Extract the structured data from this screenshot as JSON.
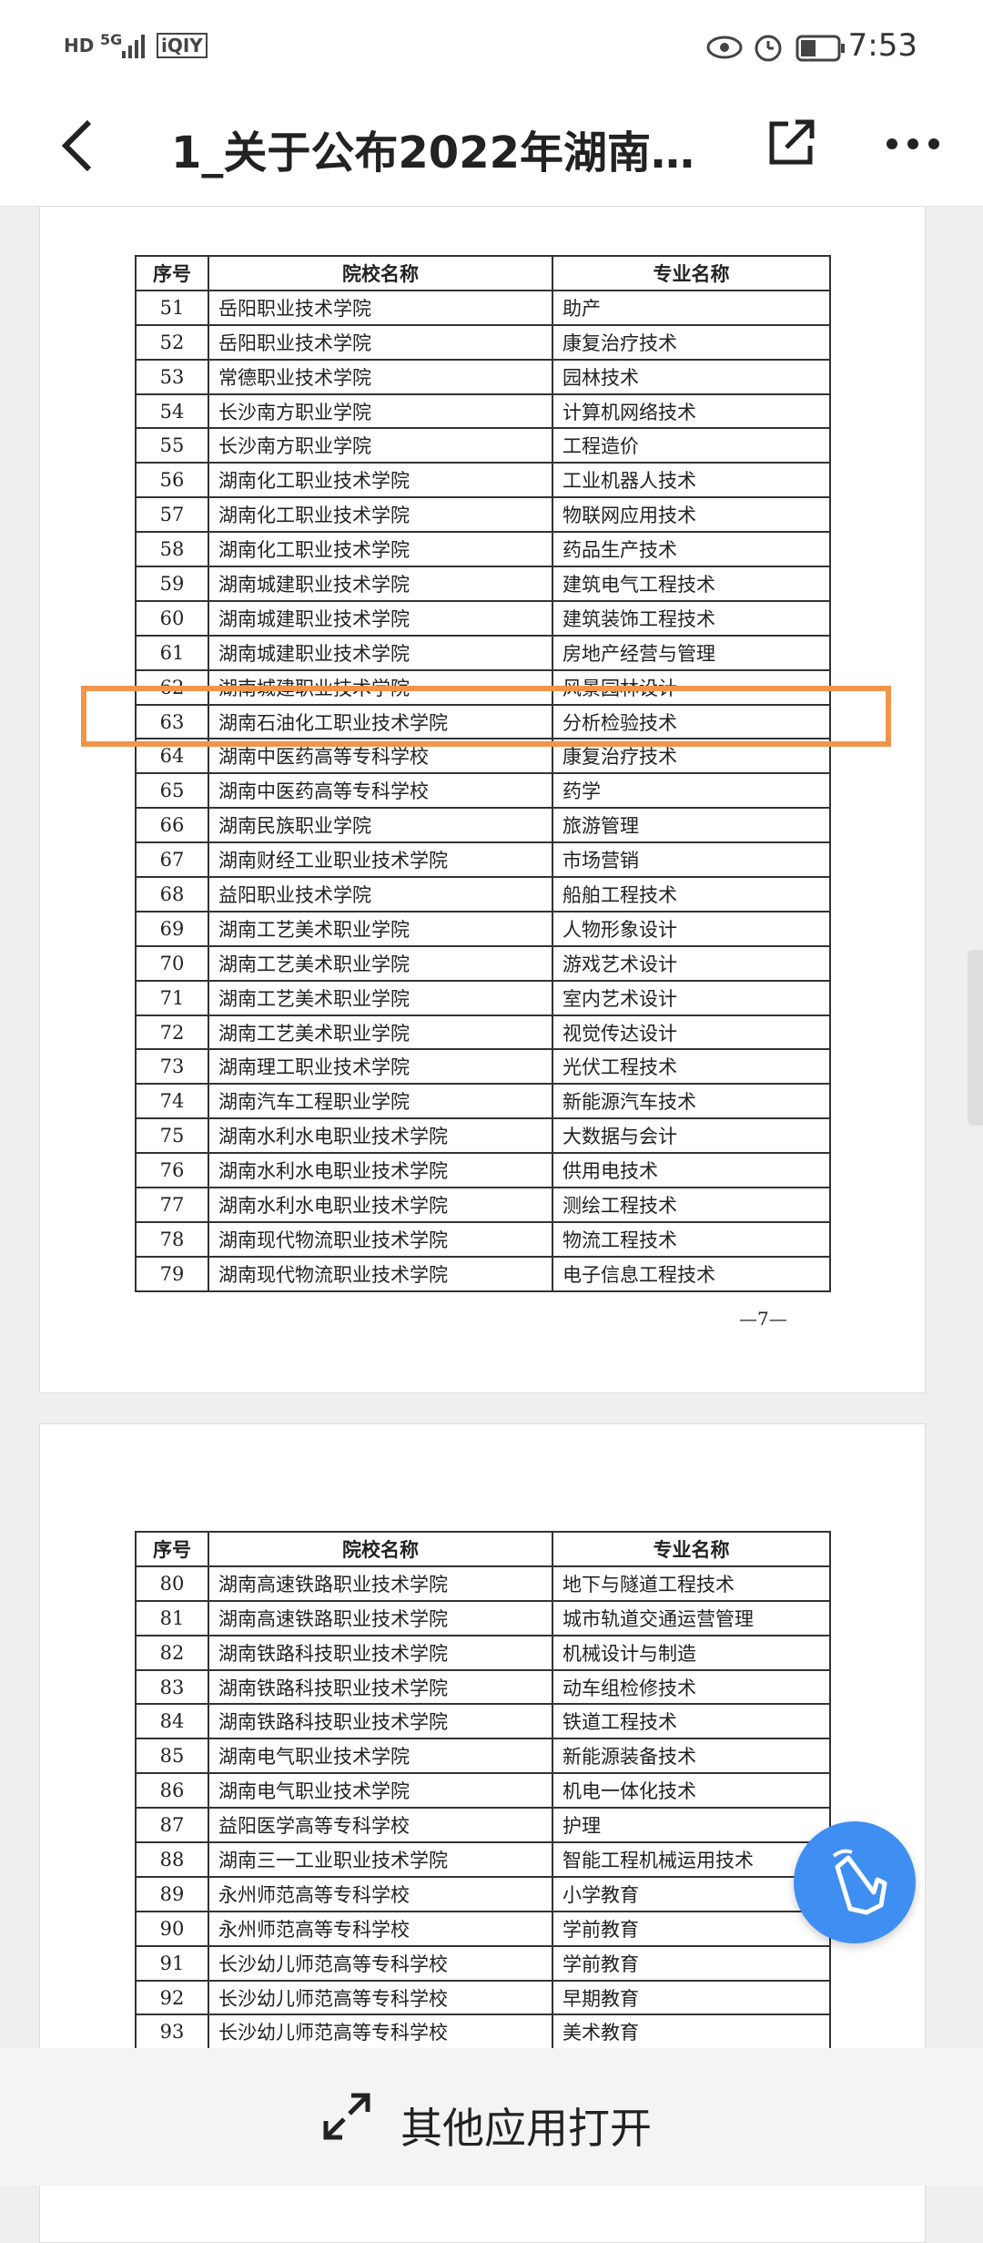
{
  "status_bar": {
    "left_icons": [
      "HD",
      "5G",
      "iQIY"
    ],
    "time": "7:53"
  },
  "header": {
    "title": "1_关于公布2022年湖南…"
  },
  "pages": [
    {
      "table": {
        "header": [
          "序号",
          "院校名称",
          "专业名称"
        ],
        "rows": [
          [
            "51",
            "岳阳职业技术学院",
            "助产"
          ],
          [
            "52",
            "岳阳职业技术学院",
            "康复治疗技术"
          ],
          [
            "53",
            "常德职业技术学院",
            "园林技术"
          ],
          [
            "54",
            "长沙南方职业学院",
            "计算机网络技术"
          ],
          [
            "55",
            "长沙南方职业学院",
            "工程造价"
          ],
          [
            "56",
            "湖南化工职业技术学院",
            "工业机器人技术"
          ],
          [
            "57",
            "湖南化工职业技术学院",
            "物联网应用技术"
          ],
          [
            "58",
            "湖南化工职业技术学院",
            "药品生产技术"
          ],
          [
            "59",
            "湖南城建职业技术学院",
            "建筑电气工程技术"
          ],
          [
            "60",
            "湖南城建职业技术学院",
            "建筑装饰工程技术"
          ],
          [
            "61",
            "湖南城建职业技术学院",
            "房地产经营与管理"
          ],
          [
            "62",
            "湖南城建职业技术学院",
            "风景园林设计"
          ],
          [
            "63",
            "湖南石油化工职业技术学院",
            "分析检验技术"
          ],
          [
            "64",
            "湖南中医药高等专科学校",
            "康复治疗技术"
          ],
          [
            "65",
            "湖南中医药高等专科学校",
            "药学"
          ],
          [
            "66",
            "湖南民族职业学院",
            "旅游管理"
          ],
          [
            "67",
            "湖南财经工业职业技术学院",
            "市场营销"
          ],
          [
            "68",
            "益阳职业技术学院",
            "船舶工程技术"
          ],
          [
            "69",
            "湖南工艺美术职业学院",
            "人物形象设计"
          ],
          [
            "70",
            "湖南工艺美术职业学院",
            "游戏艺术设计"
          ],
          [
            "71",
            "湖南工艺美术职业学院",
            "室内艺术设计"
          ],
          [
            "72",
            "湖南工艺美术职业学院",
            "视觉传达设计"
          ],
          [
            "73",
            "湖南理工职业技术学院",
            "光伏工程技术"
          ],
          [
            "74",
            "湖南汽车工程职业学院",
            "新能源汽车技术"
          ],
          [
            "75",
            "湖南水利水电职业技术学院",
            "大数据与会计"
          ],
          [
            "76",
            "湖南水利水电职业技术学院",
            "供用电技术"
          ],
          [
            "77",
            "湖南水利水电职业技术学院",
            "测绘工程技术"
          ],
          [
            "78",
            "湖南现代物流职业技术学院",
            "物流工程技术"
          ],
          [
            "79",
            "湖南现代物流职业技术学院",
            "电子信息工程技术"
          ]
        ]
      },
      "page_number": "—7—"
    },
    {
      "table": {
        "header": [
          "序号",
          "院校名称",
          "专业名称"
        ],
        "rows": [
          [
            "80",
            "湖南高速铁路职业技术学院",
            "地下与隧道工程技术"
          ],
          [
            "81",
            "湖南高速铁路职业技术学院",
            "城市轨道交通运营管理"
          ],
          [
            "82",
            "湖南铁路科技职业技术学院",
            "机械设计与制造"
          ],
          [
            "83",
            "湖南铁路科技职业技术学院",
            "动车组检修技术"
          ],
          [
            "84",
            "湖南铁路科技职业技术学院",
            "铁道工程技术"
          ],
          [
            "85",
            "湖南电气职业技术学院",
            "新能源装备技术"
          ],
          [
            "86",
            "湖南电气职业技术学院",
            "机电一体化技术"
          ],
          [
            "87",
            "益阳医学高等专科学校",
            "护理"
          ],
          [
            "88",
            "湖南三一工业职业技术学院",
            "智能工程机械运用技术"
          ],
          [
            "89",
            "永州师范高等专科学校",
            "小学教育"
          ],
          [
            "90",
            "永州师范高等专科学校",
            "学前教育"
          ],
          [
            "91",
            "长沙幼儿师范高等专科学校",
            "学前教育"
          ],
          [
            "92",
            "长沙幼儿师范高等专科学校",
            "早期教育"
          ],
          [
            "93",
            "长沙幼儿师范高等专科学校",
            "美术教育"
          ]
        ]
      }
    }
  ],
  "bottom_bar": {
    "label": "其他应用打开"
  }
}
